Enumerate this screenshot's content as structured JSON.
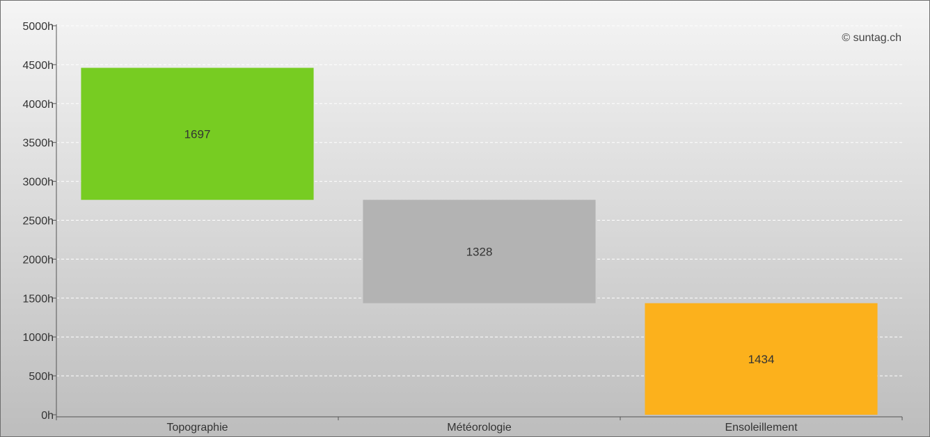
{
  "credit": "© suntag.ch",
  "chart_data": {
    "type": "bar",
    "subtype": "waterfall",
    "categories": [
      "Topographie",
      "Météorologie",
      "Ensoleillement"
    ],
    "values": [
      1697,
      1328,
      1434
    ],
    "starts": [
      2762,
      1434,
      0
    ],
    "ends": [
      4459,
      2762,
      1434
    ],
    "data_labels": [
      "1697",
      "1328",
      "1434"
    ],
    "colors": [
      "#77cc22",
      "#b3b3b3",
      "#fcb11c"
    ],
    "ylim": [
      0,
      5000
    ],
    "y_tick_labels": [
      "0h",
      "500h",
      "1000h",
      "1500h",
      "2000h",
      "2500h",
      "3000h",
      "3500h",
      "4000h",
      "4500h",
      "5000h"
    ],
    "grid": true,
    "legend": "none",
    "title": "",
    "xlabel": "",
    "ylabel": ""
  }
}
